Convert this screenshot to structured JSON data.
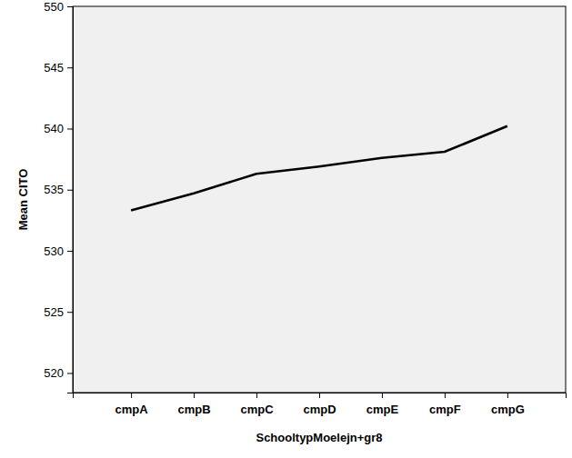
{
  "chart_data": {
    "type": "line",
    "x_label": "SchooltypMoelejn+gr8",
    "y_label": "Mean CITO",
    "categories": [
      "cmpA",
      "cmpB",
      "cmpC",
      "cmpD",
      "cmpE",
      "cmpF",
      "cmpG"
    ],
    "values": [
      533.3,
      534.7,
      536.3,
      536.9,
      537.6,
      538.1,
      540.2
    ],
    "color": "#000000",
    "ylim": [
      518.4,
      550
    ],
    "yticks": [
      520,
      525,
      530,
      535,
      540,
      545,
      550
    ],
    "grid": false
  }
}
